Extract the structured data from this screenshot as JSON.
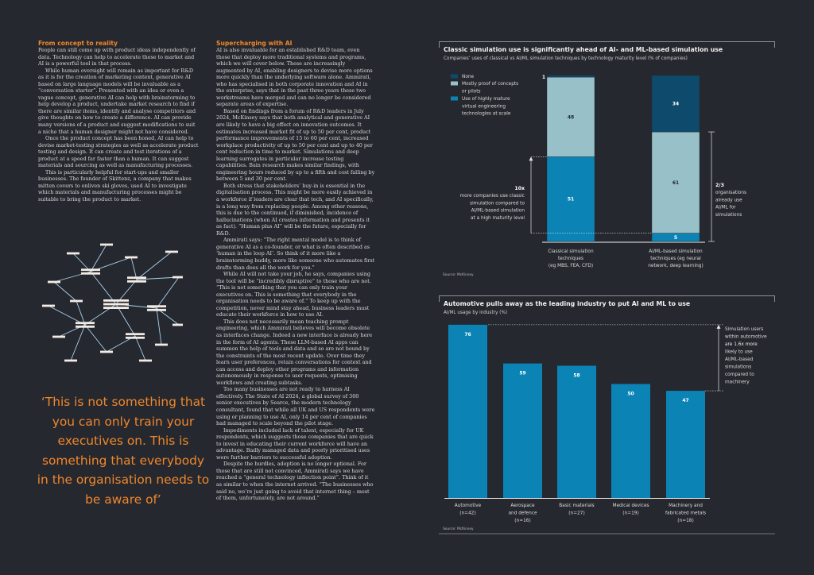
{
  "article": {
    "col1": {
      "heading": "From concept to reality",
      "paragraphs": [
        "People can still come up with product ideas independently of data. Technology can help to accelerate these to market and AI is a powerful tool in that process.",
        "While human oversight will remain as important for R&D as it is for the creation of marketing content, generative AI based on large language models will be invaluable as a “conversation starter”. Presented with an idea or even a vague concept, generative AI can help with brainstorming to help develop a product, undertake market research to find if there are similar items, identify and analyse competitors and give thoughts on how to create a difference. AI can provide many versions of a product and suggest modifications to suit a niche that a human designer might not have considered.",
        "Once the product concept has been honed, AI can help to devise market-testing strategies as well as accelerate product testing and design. It can create and test iterations of a product at a speed far faster than a human. It can suggest materials and sourcing as well as manufacturing processes.",
        "This is particularly helpful for start-ups and smaller businesses. The founder of Skittenz, a company that makes mitten covers to enliven ski gloves, used AI to investigate which materials and manufacturing processes might be suitable to bring the product to market."
      ]
    },
    "col2": {
      "heading": "Supercharging with AI",
      "paragraphs": [
        "AI is also invaluable for an established R&D team, even those that deploy more traditional systems and programs, which we will cover below. These are increasingly augmented by AI, enabling designers to devise more options more quickly than the underlying software alone. Ammirati, who has specialised in both corporate innovation and AI in the enterprise, says that in the past three years these two workstreams have merged and can no longer be considered separate areas of expertise.",
        "Based on findings from a forum of R&D leaders in July 2024, McKinsey says that both analytical and generative AI are likely to have a big effect on innovation outcomes. It estimates increased market fit of up to 50 per cent, product performance improvements of 15 to 60 per cent, increased workplace productivity of up to 50 per cent and up to 40 per cent reduction in time to market. Simulations and deep learning surrogates in particular increase testing capabilities. Bain research makes similar findings, with engineering hours reduced by up to a fifth and cost falling by between 5 and 30 per cent.",
        "Both stress that stakeholders’ buy-in is essential in the digitalisation process. This might be more easily achieved in a workforce if leaders are clear that tech, and AI specifically, is a long way from replacing people. Among other reasons, this is due to the continued, if diminished, incidence of hallucinations (when AI creates information and presents it as fact). “Human plus AI” will be the future, especially for R&D.",
        "Ammirati says: “The right mental model is to think of generative AI as a co-founder, or what is often described as ‘human in the loop AI’. So think of it more like a brainstorming buddy, more like someone who automates first drafts than does all the work for you.”",
        "While AI will not take your job, he says, companies using the tool will be “incredibly disruptive” to those who are not. “This is not something that you can only train your executives on. This is something that everybody in the organisation needs to be aware of.” To keep up with the competition, never mind stay ahead, business leaders must educate their workforce in how to use AI.",
        "This does not necessarily mean teaching prompt engineering, which Ammirati believes will become obsolete as interfaces change. Indeed a new interface is already here in the form of AI agents. These LLM-based AI apps can summon the help of tools and data and so are not bound by the constraints of the most recent update. Over time they learn user preferences, retain conversations for context and can access and deploy other programs and information autonomously in response to user requests, optimising workflows and creating subtasks.",
        "Too many businesses are not ready to harness AI effectively. The State of AI 2024, a global survey of 300 senior executives by Searce, the modern technology consultant, found that while all UK and US respondents were using or planning to use AI, only 14 per cent of companies had managed to scale beyond the pilot stage.",
        "Impediments included lack of talent, especially for UK respondents, which suggests those companies that are quick to invest in educating their current workforce will have an advantage. Badly managed data and poorly prioritised uses were further barriers to successful adoption.",
        "Despite the hurdles, adoption is no longer optional. For those that are still not convinced, Ammirati says we have reached a “general technology inflection point”. Think of it as similar to when the internet arrived. “The businesses who said no, we’re just going to avoid that internet thing – most of them, unfortunately, are not around.”"
      ]
    },
    "pull_quote": "‘This is not something that you can only train your executives on. This is something that everybody in the organisation needs to be aware of’"
  },
  "colors": {
    "background": "#262830",
    "accent": "#f0872a",
    "none": "#0d4a6b",
    "pilots": "#97c0c8",
    "mature": "#0b84b5",
    "network_node": "#f4ece4",
    "network_edge": "#a9d4ec"
  },
  "chart_data": [
    {
      "type": "bar",
      "stacked": true,
      "title": "Classic simulation use is significantly ahead of AI- and ML-based simulation use",
      "subtitle": "Companies’ uses of classical vs AI/ML simulation techniques by technology maturity level (% of companies)",
      "categories": [
        "Classical simulation techniques (eg MBS, FEA, CFD)",
        "AI/ML-based simulation techniques (eg neural network, deep learning)"
      ],
      "category_lines": [
        [
          "Classical simulation",
          "techniques",
          "(eg MBS, FEA, CFD)"
        ],
        [
          "AI/ML-based simulation",
          "techniques (eg neural",
          "network, deep learning)"
        ]
      ],
      "series": [
        {
          "name": "Use of highly mature virtual engineering technologies at scale",
          "values": [
            51,
            5
          ]
        },
        {
          "name": "Mostly proof of concepts or pilots",
          "values": [
            48,
            61
          ]
        },
        {
          "name": "None",
          "values": [
            1,
            34
          ]
        }
      ],
      "legend": [
        {
          "key": "none",
          "lines": [
            "None"
          ]
        },
        {
          "key": "pilots",
          "lines": [
            "Mostly proof of concepts",
            "or pilots"
          ]
        },
        {
          "key": "mature",
          "lines": [
            "Use of highly mature",
            "virtual engineering",
            "technologies at scale"
          ]
        }
      ],
      "legend_position": "top-left",
      "ylim": [
        0,
        100
      ],
      "annotations": {
        "left": {
          "headline": "10x",
          "lines": [
            "more companies use classic",
            "simulation compared to",
            "AI/ML-based simulation",
            "at a high maturity level"
          ]
        },
        "right": {
          "headline": "2/3",
          "lines": [
            "organisations",
            "already use",
            "AI/ML for",
            "simulations"
          ]
        }
      },
      "source": "Source: McKinsey"
    },
    {
      "type": "bar",
      "title": "Automotive pulls away as the leading industry to put AI and ML to use",
      "subtitle": "AI/ML usage by industry (%)",
      "categories": [
        "Automotive (n=42)",
        "Aerospace and defence (n=16)",
        "Basic materials (n=27)",
        "Medical devices (n=19)",
        "Machinery and fabricated metals (n=18)"
      ],
      "category_lines": [
        [
          "Automotive",
          "(n=42)"
        ],
        [
          "Aerospace",
          "and defence",
          "(n=16)"
        ],
        [
          "Basic materials",
          "(n=27)"
        ],
        [
          "Medical devices",
          "(n=19)"
        ],
        [
          "Machinery and",
          "fabricated metals",
          "(n=18)"
        ]
      ],
      "values": [
        76,
        59,
        58,
        50,
        47
      ],
      "ylim": [
        0,
        80
      ],
      "annotation": {
        "lines": [
          "Simulation users",
          "within automotive",
          "are 1.6x more",
          "likely to use",
          "AI/ML-based",
          "simulations",
          "compared to",
          "machinery"
        ]
      },
      "source": "Source: McKinsey"
    }
  ]
}
